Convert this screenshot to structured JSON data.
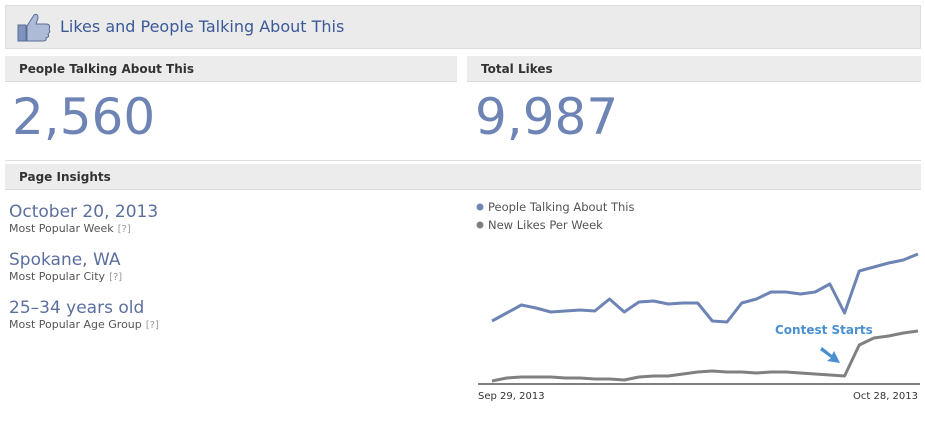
{
  "header": {
    "title": "Likes and People Talking About This"
  },
  "stats": [
    {
      "label": "People Talking About This",
      "value": "2,560"
    },
    {
      "label": "Total Likes",
      "value": "9,987"
    }
  ],
  "insights": {
    "title": "Page Insights",
    "items": [
      {
        "value": "October 20, 2013",
        "label": "Most Popular Week",
        "help": "[?]"
      },
      {
        "value": "Spokane, WA",
        "label": "Most Popular City",
        "help": "[?]"
      },
      {
        "value": "25–34 years old",
        "label": "Most Popular Age Group",
        "help": "[?]"
      }
    ]
  },
  "chart_data": {
    "type": "line",
    "categories": [
      "Sep 29, 2013",
      null,
      null,
      null,
      null,
      null,
      null,
      null,
      null,
      null,
      null,
      null,
      null,
      null,
      null,
      null,
      null,
      null,
      null,
      null,
      null,
      null,
      null,
      null,
      null,
      null,
      null,
      null,
      null,
      "Oct 28, 2013"
    ],
    "series": [
      {
        "name": "People Talking About This",
        "color": "#6d84b4",
        "values": [
          62,
          70,
          78,
          75,
          71,
          72,
          73,
          72,
          84,
          71,
          81,
          82,
          79,
          80,
          80,
          62,
          61,
          80,
          84,
          91,
          91,
          89,
          91,
          99,
          70,
          112,
          116,
          120,
          123,
          129
        ]
      },
      {
        "name": "New Likes Per Week",
        "color": "#808080",
        "values": [
          2,
          5,
          6,
          6,
          6,
          5,
          5,
          4,
          4,
          3,
          6,
          7,
          7,
          9,
          11,
          12,
          11,
          11,
          10,
          11,
          11,
          10,
          9,
          8,
          7,
          38,
          45,
          47,
          50,
          52
        ]
      }
    ],
    "ylim": [
      0,
      140
    ],
    "annotation": "Contest Starts",
    "annotation_color": "#4a90d0"
  }
}
